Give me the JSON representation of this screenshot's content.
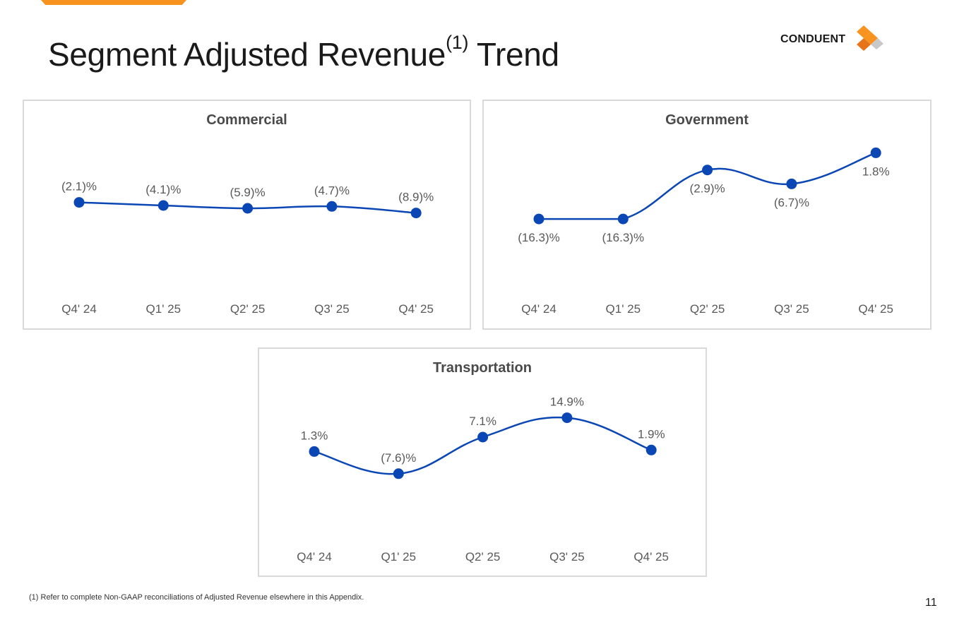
{
  "slide": {
    "title_main": "Segment Adjusted Revenue",
    "title_sup": "(1)",
    "title_tail": " Trend",
    "logo_text": "CONDUENT",
    "footnote": "(1)  Refer to complete Non-GAAP reconciliations of Adjusted Revenue elsewhere in this Appendix.",
    "page_number": "11",
    "accent_color": "#f7931e",
    "series_color": "#0b46b5",
    "label_color": "#595959"
  },
  "chart_data": [
    {
      "type": "line",
      "title": "Commercial",
      "categories": [
        "Q4' 24",
        "Q1' 25",
        "Q2' 25",
        "Q3' 25",
        "Q4' 25"
      ],
      "values": [
        -2.1,
        -4.1,
        -5.9,
        -4.7,
        -8.9
      ],
      "labels": [
        "(2.1)%",
        "(4.1)%",
        "(5.9)%",
        "(4.7)%",
        "(8.9)%"
      ],
      "label_positions": [
        "above",
        "above",
        "above",
        "above",
        "above"
      ],
      "ylim": [
        -45,
        35
      ],
      "xlabel": "",
      "ylabel": "",
      "grid": false,
      "legend": "none"
    },
    {
      "type": "line",
      "title": "Government",
      "categories": [
        "Q4' 24",
        "Q1' 25",
        "Q2' 25",
        "Q3' 25",
        "Q4' 25"
      ],
      "values": [
        -16.3,
        -16.3,
        -2.9,
        -6.7,
        1.8
      ],
      "labels": [
        "(16.3)%",
        "(16.3)%",
        "(2.9)%",
        "(6.7)%",
        "1.8%"
      ],
      "label_positions": [
        "below",
        "below",
        "below",
        "below",
        "below"
      ],
      "ylim": [
        -30,
        4
      ],
      "xlabel": "",
      "ylabel": "",
      "grid": false,
      "legend": "none"
    },
    {
      "type": "line",
      "title": "Transportation",
      "categories": [
        "Q4' 24",
        "Q1' 25",
        "Q2' 25",
        "Q3' 25",
        "Q4' 25"
      ],
      "values": [
        1.3,
        -7.6,
        7.1,
        14.9,
        1.9
      ],
      "labels": [
        "1.3%",
        "(7.6)%",
        "7.1%",
        "14.9%",
        "1.9%"
      ],
      "label_positions": [
        "above",
        "above",
        "above",
        "above",
        "above"
      ],
      "ylim": [
        -25,
        25
      ],
      "xlabel": "",
      "ylabel": "",
      "grid": false,
      "legend": "none"
    }
  ]
}
